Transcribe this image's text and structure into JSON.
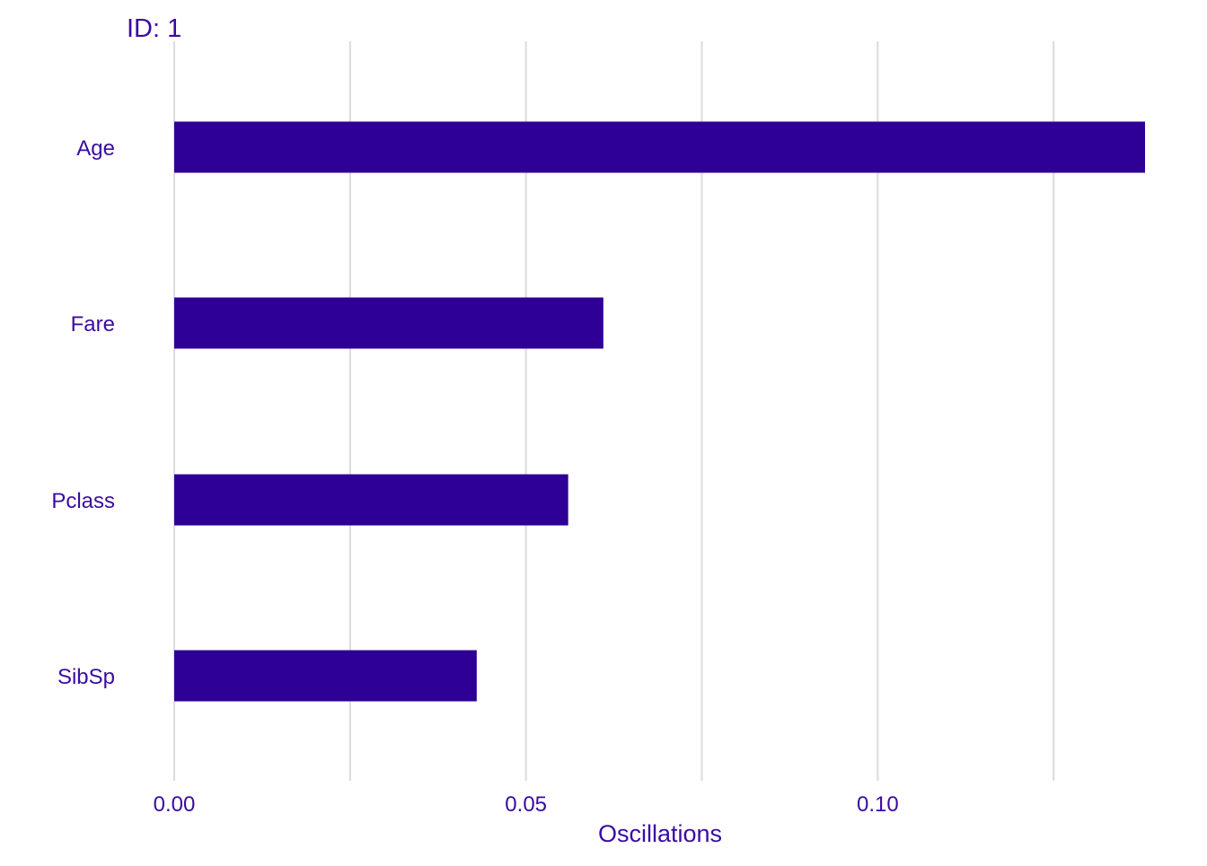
{
  "chart_data": {
    "type": "bar",
    "orientation": "horizontal",
    "title": "ID: 1",
    "xlabel": "Oscillations",
    "ylabel": "",
    "categories": [
      "Age",
      "Fare",
      "Pclass",
      "SibSp"
    ],
    "values": [
      0.138,
      0.061,
      0.056,
      0.043
    ],
    "xlim": [
      0,
      0.138
    ],
    "x_ticks": [
      0.0,
      0.05,
      0.1
    ],
    "x_tick_labels": [
      "0.00",
      "0.05",
      "0.10"
    ],
    "x_minor_gridlines": [
      0.025,
      0.075,
      0.125
    ],
    "grid": "vertical",
    "legend": "none",
    "colors": {
      "bar": "#2e0095",
      "text": "#3a0ca3",
      "grid": "#dedede"
    }
  }
}
